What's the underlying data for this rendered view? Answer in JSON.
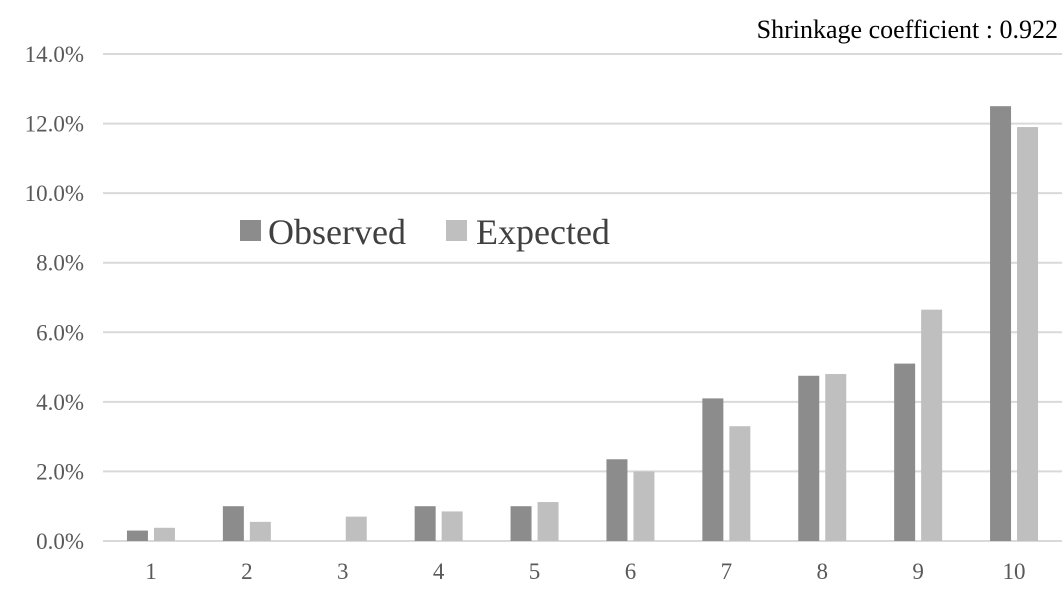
{
  "chart_data": {
    "type": "bar",
    "title": "",
    "xlabel": "",
    "ylabel": "",
    "annotation": "Shrinkage coefficient : 0.922",
    "categories": [
      "1",
      "2",
      "3",
      "4",
      "5",
      "6",
      "7",
      "8",
      "9",
      "10"
    ],
    "series": [
      {
        "name": "Observed",
        "color": "#8c8c8c",
        "values": [
          0.3,
          1.0,
          0.0,
          1.0,
          1.0,
          2.35,
          4.1,
          4.75,
          5.1,
          12.5
        ]
      },
      {
        "name": "Expected",
        "color": "#bfbfbf",
        "values": [
          0.38,
          0.55,
          0.7,
          0.85,
          1.12,
          2.0,
          3.3,
          4.8,
          6.65,
          11.9
        ]
      }
    ],
    "ylim": [
      0,
      14
    ],
    "yticks": [
      0,
      2,
      4,
      6,
      8,
      10,
      12,
      14
    ],
    "ytick_labels": [
      "0.0%",
      "2.0%",
      "4.0%",
      "6.0%",
      "8.0%",
      "10.0%",
      "12.0%",
      "14.0%"
    ],
    "grid": "horizontal",
    "legend_position": "upper-left inside plot"
  }
}
